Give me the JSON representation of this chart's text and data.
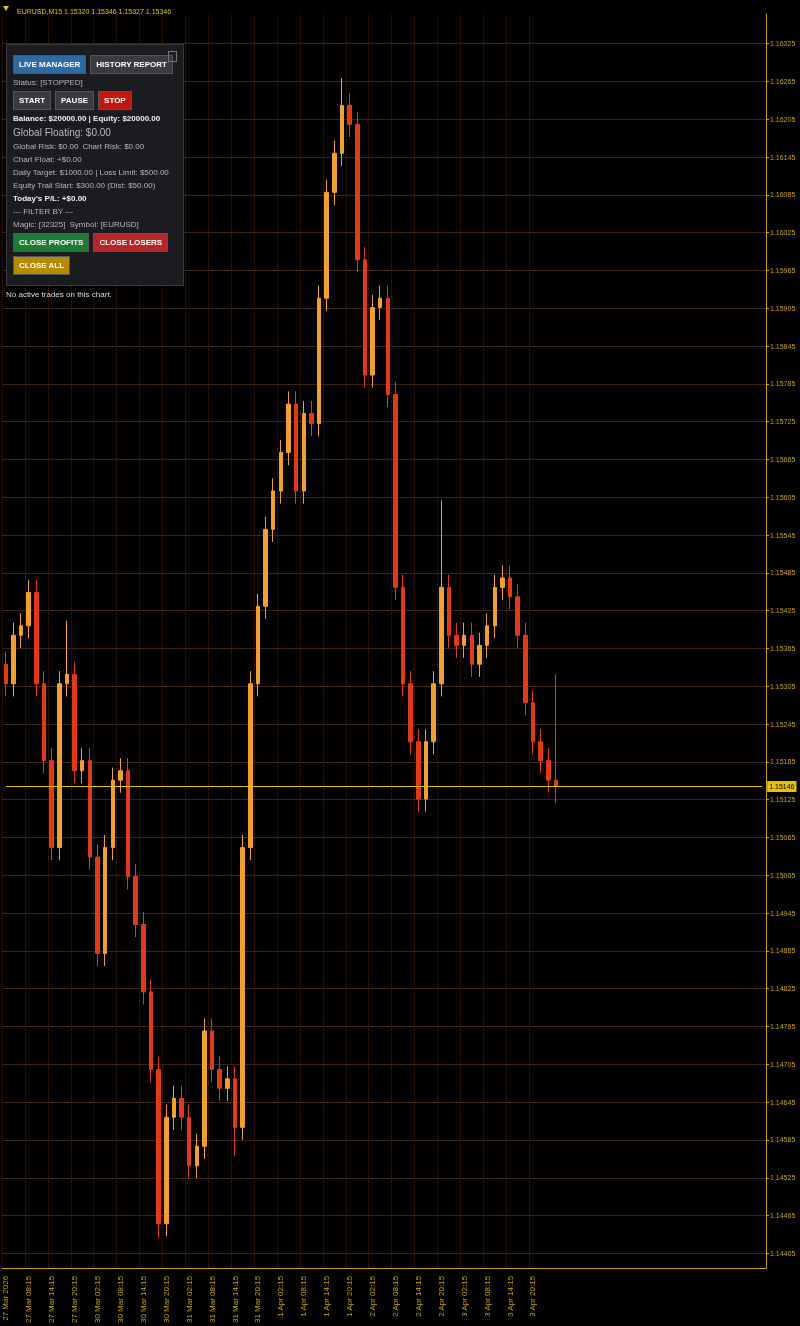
{
  "chart_data": {
    "type": "candlestick",
    "title": "EURUSD,M15 1.15320 1.15346 1.15327 1.15346",
    "categories": [
      "27 Mar 2026",
      null,
      null,
      "27 Mar 08:15",
      null,
      null,
      "27 Mar 14:15",
      null,
      null,
      "27 Mar 20:15",
      null,
      null,
      "30 Mar 02:15",
      null,
      null,
      "30 Mar 08:15",
      null,
      null,
      "30 Mar 14:15",
      null,
      null,
      "30 Mar 20:15",
      null,
      null,
      "31 Mar 02:15",
      null,
      null,
      "31 Mar 08:15",
      null,
      null,
      "31 Mar 14:15",
      null,
      null,
      "31 Mar 20:15",
      null,
      null,
      "1 Apr 02:15",
      null,
      null,
      "1 Apr 08:15",
      null,
      null,
      "1 Apr 14:15",
      null,
      null,
      "1 Apr 20:15",
      null,
      null,
      "2 Apr 02:15",
      null,
      null,
      "2 Apr 08:15",
      null,
      null,
      "2 Apr 14:15",
      null,
      null,
      "2 Apr 20:15",
      null,
      null,
      "3 Apr 02:15",
      null,
      null,
      "3 Apr 08:15",
      null,
      null,
      "3 Apr 14:15",
      null,
      null,
      "3 Apr 20:15",
      null,
      null,
      null,
      null,
      null,
      null,
      null,
      null,
      null,
      null,
      null,
      null,
      null,
      null,
      null,
      null,
      null,
      null,
      null,
      null,
      null,
      null,
      null,
      null,
      null,
      null,
      null,
      null,
      null,
      null
    ],
    "ohlc": [
      [
        1.1534,
        1.1536,
        1.15289,
        1.15309
      ],
      [
        1.15309,
        1.15406,
        1.15289,
        1.15386
      ],
      [
        1.15386,
        1.15421,
        1.15366,
        1.15401
      ],
      [
        1.15401,
        1.15474,
        1.15381,
        1.15454
      ],
      [
        1.15454,
        1.15474,
        1.15289,
        1.15309
      ],
      [
        1.15309,
        1.15329,
        1.15167,
        1.15187
      ],
      [
        1.15187,
        1.15207,
        1.15029,
        1.15049
      ],
      [
        1.15049,
        1.15329,
        1.15029,
        1.15309
      ],
      [
        1.15309,
        1.15409,
        1.15289,
        1.15324
      ],
      [
        1.15324,
        1.15344,
        1.15151,
        1.15171
      ],
      [
        1.15171,
        1.15207,
        1.15151,
        1.15187
      ],
      [
        1.15187,
        1.15207,
        1.15014,
        1.15034
      ],
      [
        1.15034,
        1.15054,
        1.14861,
        1.14881
      ],
      [
        1.14881,
        1.15069,
        1.14861,
        1.15049
      ],
      [
        1.15049,
        1.15176,
        1.15029,
        1.15156
      ],
      [
        1.15156,
        1.15191,
        1.15136,
        1.15171
      ],
      [
        1.15171,
        1.15191,
        1.14983,
        1.15003
      ],
      [
        1.15003,
        1.15023,
        1.14907,
        1.14927
      ],
      [
        1.14927,
        1.14947,
        1.148,
        1.1482
      ],
      [
        1.1482,
        1.1484,
        1.14677,
        1.14697
      ],
      [
        1.14697,
        1.14717,
        1.14429,
        1.14452
      ],
      [
        1.14452,
        1.14641,
        1.14432,
        1.14621
      ],
      [
        1.14621,
        1.14671,
        1.14601,
        1.14651
      ],
      [
        1.14651,
        1.14671,
        1.14601,
        1.14621
      ],
      [
        1.14621,
        1.14641,
        1.14524,
        1.14544
      ],
      [
        1.14544,
        1.14595,
        1.14524,
        1.14575
      ],
      [
        1.14575,
        1.14778,
        1.14555,
        1.14758
      ],
      [
        1.14758,
        1.14778,
        1.14677,
        1.14697
      ],
      [
        1.14697,
        1.14717,
        1.14647,
        1.14667
      ],
      [
        1.14667,
        1.14702,
        1.14647,
        1.14682
      ],
      [
        1.14682,
        1.14702,
        1.1456,
        1.14605
      ],
      [
        1.14605,
        1.15069,
        1.14585,
        1.15049
      ],
      [
        1.15049,
        1.15329,
        1.15029,
        1.15309
      ],
      [
        1.15309,
        1.15452,
        1.15289,
        1.15432
      ],
      [
        1.15432,
        1.15574,
        1.15412,
        1.15554
      ],
      [
        1.15554,
        1.15635,
        1.15534,
        1.15615
      ],
      [
        1.15615,
        1.15696,
        1.15595,
        1.15676
      ],
      [
        1.15676,
        1.15773,
        1.15656,
        1.15753
      ],
      [
        1.15753,
        1.15773,
        1.15595,
        1.15615
      ],
      [
        1.15615,
        1.15758,
        1.15595,
        1.15738
      ],
      [
        1.15738,
        1.15758,
        1.15702,
        1.15722
      ],
      [
        1.15722,
        1.15941,
        1.15702,
        1.15921
      ],
      [
        1.15921,
        1.16109,
        1.15901,
        1.16089
      ],
      [
        1.16089,
        1.16171,
        1.16069,
        1.16151
      ],
      [
        1.16151,
        1.1627,
        1.16131,
        1.16227
      ],
      [
        1.16227,
        1.16247,
        1.16177,
        1.16197
      ],
      [
        1.16197,
        1.16217,
        1.15962,
        1.15982
      ],
      [
        1.15982,
        1.16002,
        1.15779,
        1.15799
      ],
      [
        1.15799,
        1.15926,
        1.15779,
        1.15906
      ],
      [
        1.15906,
        1.15941,
        1.15886,
        1.15921
      ],
      [
        1.15921,
        1.15941,
        1.15748,
        1.15768
      ],
      [
        1.15768,
        1.15788,
        1.15442,
        1.15462
      ],
      [
        1.15462,
        1.15482,
        1.15289,
        1.15309
      ],
      [
        1.15309,
        1.15329,
        1.15197,
        1.15217
      ],
      [
        1.15217,
        1.15237,
        1.15106,
        1.15126
      ],
      [
        1.15126,
        1.15237,
        1.15106,
        1.15217
      ],
      [
        1.15217,
        1.15329,
        1.15197,
        1.15309
      ],
      [
        1.15309,
        1.156,
        1.15289,
        1.15462
      ],
      [
        1.15462,
        1.15482,
        1.15366,
        1.15386
      ],
      [
        1.15386,
        1.15406,
        1.1535,
        1.1537
      ],
      [
        1.1537,
        1.15406,
        1.1535,
        1.15386
      ],
      [
        1.15386,
        1.15406,
        1.1532,
        1.1534
      ],
      [
        1.1534,
        1.1539,
        1.1532,
        1.1537
      ],
      [
        1.1537,
        1.15421,
        1.1535,
        1.15401
      ],
      [
        1.15401,
        1.15482,
        1.15381,
        1.15462
      ],
      [
        1.15462,
        1.15497,
        1.15442,
        1.15477
      ],
      [
        1.15477,
        1.15497,
        1.15427,
        1.15447
      ],
      [
        1.15447,
        1.15467,
        1.15366,
        1.15386
      ],
      [
        1.15386,
        1.15406,
        1.15259,
        1.15279
      ],
      [
        1.15279,
        1.15299,
        1.15197,
        1.15217
      ],
      [
        1.15217,
        1.15237,
        1.15167,
        1.15187
      ],
      [
        1.15187,
        1.15207,
        1.15136,
        1.15156
      ],
      [
        1.15156,
        1.15324,
        1.1512,
        1.15146
      ],
      null,
      null,
      null,
      null,
      null,
      null,
      null,
      null,
      null,
      null,
      null,
      null,
      null,
      null,
      null,
      null,
      null,
      null,
      null,
      null,
      null,
      null,
      null,
      null,
      null,
      null,
      null
    ],
    "colors": [
      "#e03a1a",
      "#f0a030",
      "#f0a030",
      "#f0a030",
      "#e03a1a",
      "#e03a1a",
      "#e03a1a",
      "#f0a030",
      "#f0a030",
      "#e03a1a",
      "#f0a030",
      "#e03a1a",
      "#e03a1a",
      "#f0a030",
      "#f0a030",
      "#f0a030",
      "#e03a1a",
      "#e03a1a",
      "#e03a1a",
      "#e03a1a",
      "#e03a1a",
      "#f0a030",
      "#f0a030",
      "#e03a1a",
      "#e03a1a",
      "#f0a030",
      "#f0a030",
      "#e03a1a",
      "#e03a1a",
      "#f0a030",
      "#e03a1a",
      "#f0a030",
      "#f0a030",
      "#f0a030",
      "#f0a030",
      "#f0a030",
      "#f0a030",
      "#f0a030",
      "#e03a1a",
      "#f0a030",
      "#e03a1a",
      "#f0a030",
      "#f0a030",
      "#f0a030",
      "#f0a030",
      "#e03a1a",
      "#e03a1a",
      "#e03a1a",
      "#f0a030",
      "#f0a030",
      "#e03a1a",
      "#e03a1a",
      "#e03a1a",
      "#e03a1a",
      "#e03a1a",
      "#f0a030",
      "#f0a030",
      "#f0a030",
      "#e03a1a",
      "#e03a1a",
      "#f0a030",
      "#e03a1a",
      "#f0a030",
      "#f0a030",
      "#f0a030",
      "#f0a030",
      "#e03a1a",
      "#e03a1a",
      "#e03a1a",
      "#e03a1a",
      "#e03a1a",
      "#e03a1a",
      "#e03a1a",
      null,
      null,
      null,
      null,
      null,
      null,
      null,
      null,
      null,
      null,
      null,
      null,
      null,
      null,
      null,
      null,
      null,
      null,
      null,
      null,
      null,
      null,
      null,
      null,
      null,
      null,
      null
    ],
    "ylim": [
      1.14382,
      1.16372
    ],
    "yticks": [
      1.16325,
      1.16265,
      1.16205,
      1.16145,
      1.16085,
      1.16025,
      1.15965,
      1.15905,
      1.15845,
      1.15785,
      1.15725,
      1.15665,
      1.15605,
      1.15545,
      1.15485,
      1.15425,
      1.15365,
      1.15305,
      1.15245,
      1.15185,
      1.15125,
      1.15065,
      1.15005,
      1.14945,
      1.14885,
      1.14825,
      1.14765,
      1.14705,
      1.14645,
      1.14585,
      1.14525,
      1.14465,
      1.14405
    ],
    "grid": true,
    "ref_lines": [
      {
        "axis": "y",
        "value": 1.15146,
        "label": "1.15146",
        "color": "#e6c200"
      }
    ],
    "annotations": [
      "LIVE MANAGER",
      "HISTORY REPORT",
      "Status: [STOPPED]",
      "START",
      "PAUSE",
      "STOP",
      "Balance: $20000.00 | Equity: $20000.00",
      "Global Floating: $0.00",
      "Global Risk: $0.00",
      "Chart Risk: $0.00",
      "Chart Float: +$0.00",
      "Daily Target: $1000.00 | Loss Limit: $500.00",
      "Equity Trail Start: $300.00 (Dist: $50.00)",
      "Today's P/L: +$0.00",
      "--- FILTER BY ---",
      "Magic: [32325]",
      "Symbol: [EURUSD]",
      "CLOSE PROFITS",
      "CLOSE LOSERS",
      "CLOSE ALL",
      "No active trades on this chart."
    ]
  }
}
